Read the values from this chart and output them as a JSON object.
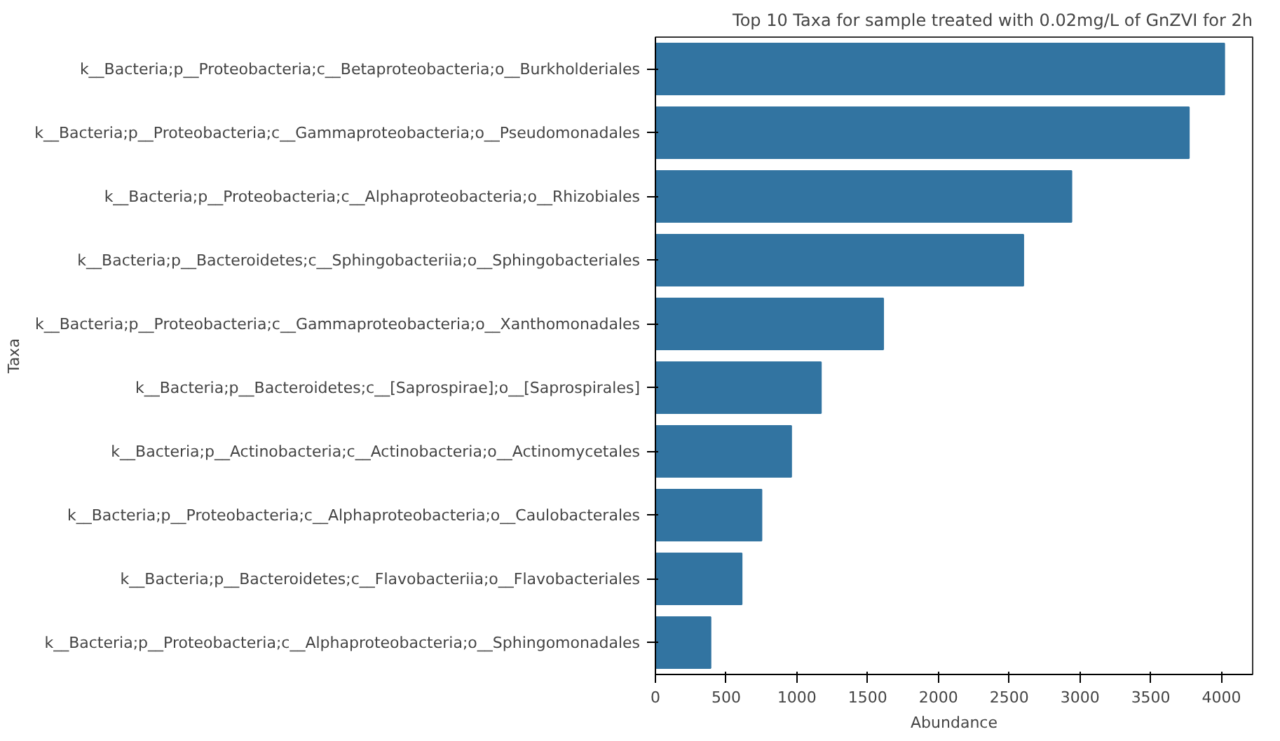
{
  "chart_data": {
    "type": "bar",
    "orientation": "horizontal",
    "title": "Top 10 Taxa for sample treated with 0.02mg/L of GnZVI for 2h",
    "xlabel": "Abundance",
    "ylabel": "Taxa",
    "categories": [
      "k__Bacteria;p__Proteobacteria;c__Betaproteobacteria;o__Burkholderiales",
      "k__Bacteria;p__Proteobacteria;c__Gammaproteobacteria;o__Pseudomonadales",
      "k__Bacteria;p__Proteobacteria;c__Alphaproteobacteria;o__Rhizobiales",
      "k__Bacteria;p__Bacteroidetes;c__Sphingobacteriia;o__Sphingobacteriales",
      "k__Bacteria;p__Proteobacteria;c__Gammaproteobacteria;o__Xanthomonadales",
      "k__Bacteria;p__Bacteroidetes;c__[Saprospirae];o__[Saprospirales]",
      "k__Bacteria;p__Actinobacteria;c__Actinobacteria;o__Actinomycetales",
      "k__Bacteria;p__Proteobacteria;c__Alphaproteobacteria;o__Caulobacterales",
      "k__Bacteria;p__Bacteroidetes;c__Flavobacteriia;o__Flavobacteriales",
      "k__Bacteria;p__Proteobacteria;c__Alphaproteobacteria;o__Sphingomonadales"
    ],
    "values": [
      4020,
      3770,
      2940,
      2600,
      1610,
      1170,
      960,
      750,
      610,
      390
    ],
    "color": "#3274a1",
    "xlim": [
      0,
      4220
    ],
    "xticks": [
      0,
      500,
      1000,
      1500,
      2000,
      2500,
      3000,
      3500,
      4000
    ],
    "grid": false
  }
}
